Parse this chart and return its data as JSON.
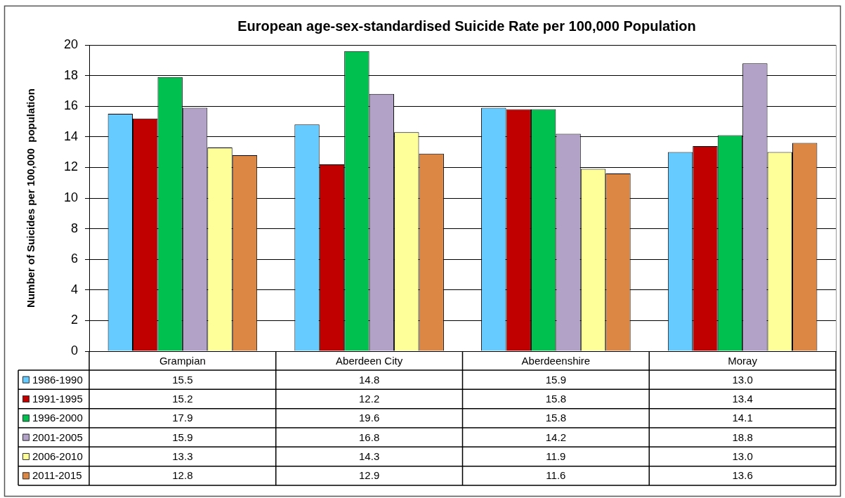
{
  "chart_data": {
    "type": "bar",
    "title": "European age-sex-standardised Suicide Rate per 100,000 Population",
    "ylabel": "Number of Suicides per 100,000  population",
    "categories": [
      "Grampian",
      "Aberdeen City",
      "Aberdeenshire",
      "Moray"
    ],
    "series": [
      {
        "name": "1986-1990",
        "color": "#66ccff",
        "values": [
          15.5,
          14.8,
          15.9,
          13.0
        ],
        "value_labels": [
          "15.5",
          "14.8",
          "15.9",
          "13.0"
        ]
      },
      {
        "name": "1991-1995",
        "color": "#c00000",
        "values": [
          15.2,
          12.2,
          15.8,
          13.4
        ],
        "value_labels": [
          "15.2",
          "12.2",
          "15.8",
          "13.4"
        ]
      },
      {
        "name": "1996-2000",
        "color": "#00c050",
        "values": [
          17.9,
          19.6,
          15.8,
          14.1
        ],
        "value_labels": [
          "17.9",
          "19.6",
          "15.8",
          "14.1"
        ]
      },
      {
        "name": "2001-2005",
        "color": "#b2a2c8",
        "values": [
          15.9,
          16.8,
          14.2,
          18.8
        ],
        "value_labels": [
          "15.9",
          "16.8",
          "14.2",
          "18.8"
        ]
      },
      {
        "name": "2006-2010",
        "color": "#ffff99",
        "values": [
          13.3,
          14.3,
          11.9,
          13.0
        ],
        "value_labels": [
          "13.3",
          "14.3",
          "11.9",
          "13.0"
        ]
      },
      {
        "name": "2011-2015",
        "color": "#dc8844",
        "values": [
          12.8,
          12.9,
          11.6,
          13.6
        ],
        "value_labels": [
          "12.8",
          "12.9",
          "11.6",
          "13.6"
        ]
      }
    ],
    "ylim": [
      0,
      20
    ],
    "yticks": [
      0,
      2,
      4,
      6,
      8,
      10,
      12,
      14,
      16,
      18,
      20
    ],
    "grid": "y",
    "legend": "bottom"
  }
}
